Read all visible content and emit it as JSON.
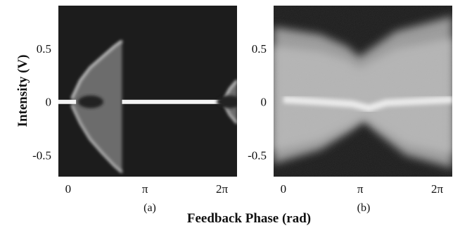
{
  "chart_data": [
    {
      "type": "heatmap",
      "panel_label": "(a)",
      "description": "bifurcation diagram: intensity vs feedback phase",
      "x_ticks": [
        "0",
        "π",
        "2π"
      ],
      "x_tick_values": [
        0,
        3.1416,
        6.2832
      ],
      "y_ticks": [
        "0.5",
        "0",
        "-0.5"
      ],
      "y_tick_values": [
        0.5,
        0,
        -0.5
      ],
      "xlim": [
        -0.4,
        6.9
      ],
      "ylim": [
        -0.7,
        0.9
      ],
      "background": "#1c1c1c",
      "series": [
        {
          "regime": "chaotic",
          "phase_range": [
            0.15,
            2.2
          ],
          "upper_envelope": [
            [
              0.15,
              0.03
            ],
            [
              0.5,
              0.2
            ],
            [
              0.9,
              0.32
            ],
            [
              1.4,
              0.42
            ],
            [
              1.9,
              0.52
            ],
            [
              2.2,
              0.57
            ]
          ],
          "lower_envelope": [
            [
              0.15,
              -0.03
            ],
            [
              0.5,
              -0.2
            ],
            [
              0.9,
              -0.35
            ],
            [
              1.4,
              -0.48
            ],
            [
              1.9,
              -0.6
            ],
            [
              2.2,
              -0.66
            ]
          ]
        },
        {
          "regime": "steady",
          "phase_range": [
            2.2,
            6.4
          ],
          "value": 0
        },
        {
          "regime": "chaotic",
          "phase_range": [
            6.4,
            6.9
          ],
          "upper_envelope": [
            [
              6.4,
              0.03
            ],
            [
              6.6,
              0.12
            ],
            [
              6.9,
              0.2
            ]
          ],
          "lower_envelope": [
            [
              6.4,
              -0.03
            ],
            [
              6.6,
              -0.12
            ],
            [
              6.9,
              -0.2
            ]
          ]
        }
      ]
    },
    {
      "type": "heatmap",
      "panel_label": "(b)",
      "description": "intensity histogram vs feedback phase",
      "x_ticks": [
        "0",
        "π",
        "2π"
      ],
      "x_tick_values": [
        0,
        3.1416,
        6.2832
      ],
      "y_ticks": [
        "0.5",
        "0",
        "-0.5"
      ],
      "y_tick_values": [
        0.5,
        0,
        -0.5
      ],
      "xlim": [
        -0.4,
        6.9
      ],
      "ylim": [
        -0.7,
        0.9
      ],
      "background": "#1c1c1c",
      "envelope": {
        "upper": [
          [
            -0.4,
            0.7
          ],
          [
            1.5,
            0.63
          ],
          [
            2.6,
            0.52
          ],
          [
            3.1,
            0.42
          ],
          [
            3.6,
            0.5
          ],
          [
            4.6,
            0.66
          ],
          [
            6.9,
            0.8
          ]
        ],
        "lower": [
          [
            -0.4,
            -0.58
          ],
          [
            1.5,
            -0.45
          ],
          [
            2.7,
            -0.28
          ],
          [
            3.3,
            -0.18
          ],
          [
            3.9,
            -0.3
          ],
          [
            5.0,
            -0.5
          ],
          [
            6.9,
            -0.62
          ]
        ]
      },
      "bright_ridge": [
        [
          0,
          0.02
        ],
        [
          1.5,
          0.0
        ],
        [
          2.8,
          -0.02
        ],
        [
          3.5,
          -0.06
        ],
        [
          4.2,
          -0.01
        ],
        [
          6.9,
          0.02
        ]
      ]
    }
  ],
  "axes": {
    "ylabel": "Intensity (V)",
    "xlabel": "Feedback Phase (rad)"
  }
}
